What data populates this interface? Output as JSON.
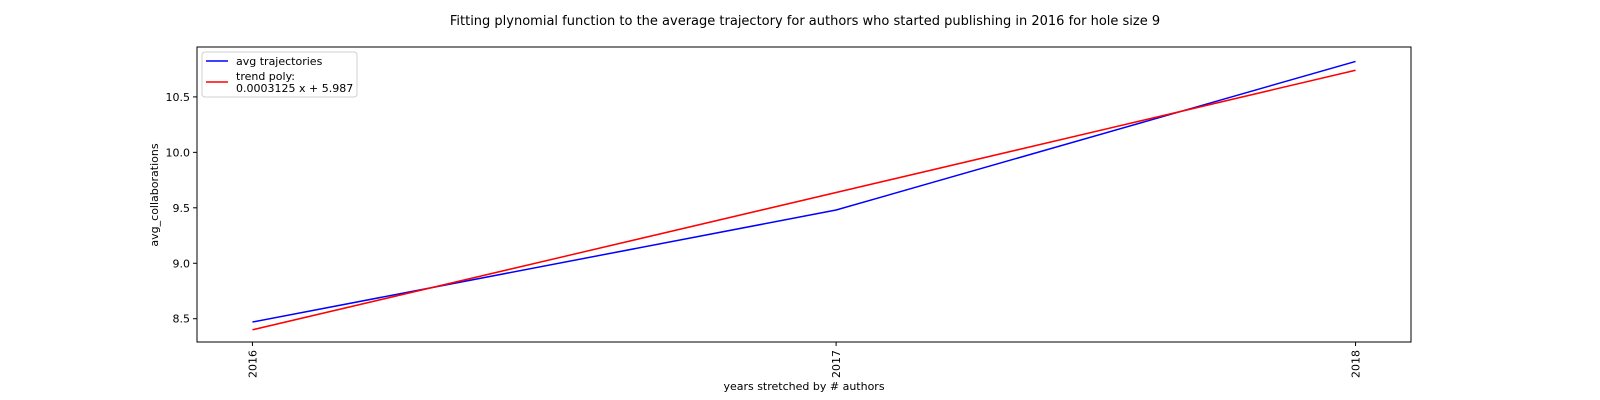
{
  "chart_data": {
    "type": "line",
    "title": "Fitting plynomial function to the average trajectory for authors who started publishing in 2016 for hole size 9",
    "xlabel": "years stretched by # authors",
    "ylabel": "avg_collaborations",
    "x_ticks": [
      {
        "label": "2016",
        "x": 0
      },
      {
        "label": "2017",
        "x": 1
      },
      {
        "label": "2018",
        "x": 1.89
      }
    ],
    "y_ticks": [
      8.5,
      9.0,
      9.5,
      10.0,
      10.5
    ],
    "y_tick_labels": [
      "8.5",
      "9.0",
      "9.5",
      "10.0",
      "10.5"
    ],
    "xlim": [
      -0.095,
      1.985
    ],
    "ylim": [
      8.29,
      10.95
    ],
    "grid": false,
    "legend_position": "top-left",
    "series": [
      {
        "name": "avg trajectories",
        "color": "#0000ff",
        "points": [
          [
            0,
            8.47
          ],
          [
            1,
            9.48
          ],
          [
            1.89,
            10.82
          ]
        ]
      },
      {
        "name": "trend poly:\n0.0003125 x + 5.987",
        "legend_lines": [
          "trend poly:",
          "0.0003125 x + 5.987"
        ],
        "color": "#ff0000",
        "points": [
          [
            0,
            8.4
          ],
          [
            1.89,
            10.74
          ]
        ]
      }
    ]
  }
}
